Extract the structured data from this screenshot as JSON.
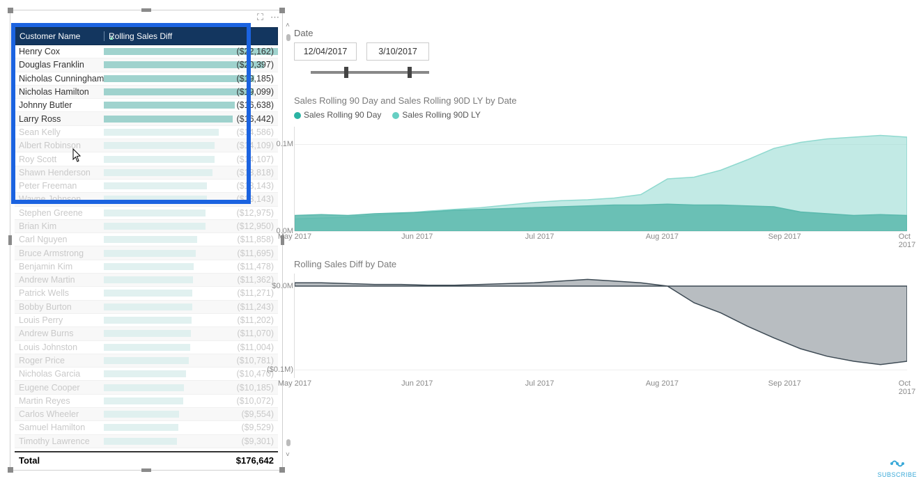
{
  "table": {
    "header_col1": "Customer Name",
    "header_col2": "Rolling Sales Diff",
    "total_label": "Total",
    "total_value": "$176,642",
    "max_bar": 22162,
    "rows": [
      {
        "name": "Henry Cox",
        "value": "($22,162)",
        "num": 22162,
        "dim": false
      },
      {
        "name": "Douglas Franklin",
        "value": "($20,397)",
        "num": 20397,
        "dim": false
      },
      {
        "name": "Nicholas Cunningham",
        "value": "($19,185)",
        "num": 19185,
        "dim": false
      },
      {
        "name": "Nicholas Hamilton",
        "value": "($19,099)",
        "num": 19099,
        "dim": false
      },
      {
        "name": "Johnny Butler",
        "value": "($16,638)",
        "num": 16638,
        "dim": false
      },
      {
        "name": "Larry Ross",
        "value": "($16,442)",
        "num": 16442,
        "dim": false
      },
      {
        "name": "Sean Kelly",
        "value": "($14,586)",
        "num": 14586,
        "dim": true
      },
      {
        "name": "Albert Robinson",
        "value": "($14,109)",
        "num": 14109,
        "dim": true
      },
      {
        "name": "Roy Scott",
        "value": "($14,107)",
        "num": 14107,
        "dim": true
      },
      {
        "name": "Shawn Henderson",
        "value": "($13,818)",
        "num": 13818,
        "dim": true
      },
      {
        "name": "Peter Freeman",
        "value": "($13,143)",
        "num": 13143,
        "dim": true
      },
      {
        "name": "Wayne Johnson",
        "value": "($13,143)",
        "num": 13143,
        "dim": true
      },
      {
        "name": "Stephen Greene",
        "value": "($12,975)",
        "num": 12975,
        "dim": true
      },
      {
        "name": "Brian Kim",
        "value": "($12,950)",
        "num": 12950,
        "dim": true
      },
      {
        "name": "Carl Nguyen",
        "value": "($11,858)",
        "num": 11858,
        "dim": true
      },
      {
        "name": "Bruce Armstrong",
        "value": "($11,695)",
        "num": 11695,
        "dim": true
      },
      {
        "name": "Benjamin Kim",
        "value": "($11,478)",
        "num": 11478,
        "dim": true
      },
      {
        "name": "Andrew Martin",
        "value": "($11,362)",
        "num": 11362,
        "dim": true
      },
      {
        "name": "Patrick Wells",
        "value": "($11,271)",
        "num": 11271,
        "dim": true
      },
      {
        "name": "Bobby Burton",
        "value": "($11,243)",
        "num": 11243,
        "dim": true
      },
      {
        "name": "Louis Perry",
        "value": "($11,202)",
        "num": 11202,
        "dim": true
      },
      {
        "name": "Andrew Burns",
        "value": "($11,070)",
        "num": 11070,
        "dim": true
      },
      {
        "name": "Louis Johnston",
        "value": "($11,004)",
        "num": 11004,
        "dim": true
      },
      {
        "name": "Roger Price",
        "value": "($10,781)",
        "num": 10781,
        "dim": true
      },
      {
        "name": "Nicholas Garcia",
        "value": "($10,470)",
        "num": 10470,
        "dim": true
      },
      {
        "name": "Eugene Cooper",
        "value": "($10,185)",
        "num": 10185,
        "dim": true
      },
      {
        "name": "Martin Reyes",
        "value": "($10,072)",
        "num": 10072,
        "dim": true
      },
      {
        "name": "Carlos Wheeler",
        "value": "($9,554)",
        "num": 9554,
        "dim": true
      },
      {
        "name": "Samuel Hamilton",
        "value": "($9,529)",
        "num": 9529,
        "dim": true
      },
      {
        "name": "Timothy Lawrence",
        "value": "($9,301)",
        "num": 9301,
        "dim": true
      }
    ]
  },
  "date_slicer": {
    "label": "Date",
    "from": "12/04/2017",
    "to": "3/10/2017",
    "knob1_pct": 28,
    "knob2_pct": 82
  },
  "chart1": {
    "title": "Sales Rolling 90 Day and Sales Rolling 90D LY by Date",
    "legend": [
      {
        "label": "Sales Rolling 90 Day",
        "color": "#2bb3a3"
      },
      {
        "label": "Sales Rolling 90D LY",
        "color": "#66cfc3"
      }
    ],
    "yticks": [
      {
        "label": "0.1M",
        "v": 0.1
      },
      {
        "label": "0.0M",
        "v": 0.0
      }
    ],
    "ylim": [
      0,
      0.12
    ],
    "xlabels": [
      "May 2017",
      "Jun 2017",
      "Jul 2017",
      "Aug 2017",
      "Sep 2017",
      "Oct 2017"
    ],
    "series_ly_color": "#8fd9cf",
    "series_cur_color": "#5ab9ad",
    "series_cur": [
      0.018,
      0.019,
      0.018,
      0.02,
      0.021,
      0.022,
      0.024,
      0.025,
      0.026,
      0.027,
      0.028,
      0.029,
      0.03,
      0.03,
      0.031,
      0.03,
      0.03,
      0.029,
      0.028,
      0.022,
      0.02,
      0.018,
      0.019,
      0.018
    ],
    "series_ly": [
      0.014,
      0.015,
      0.016,
      0.018,
      0.02,
      0.023,
      0.025,
      0.027,
      0.03,
      0.033,
      0.035,
      0.036,
      0.038,
      0.042,
      0.06,
      0.062,
      0.07,
      0.082,
      0.095,
      0.102,
      0.106,
      0.108,
      0.11,
      0.108
    ]
  },
  "chart2": {
    "title": "Rolling Sales Diff by Date",
    "yticks": [
      {
        "label": "$0.0M",
        "v": 0.0
      },
      {
        "label": "($0.1M)",
        "v": -0.1
      }
    ],
    "ylim": [
      -0.11,
      0.015
    ],
    "xlabels": [
      "May 2017",
      "Jun 2017",
      "Jul 2017",
      "Aug 2017",
      "Sep 2017",
      "Oct 2017"
    ],
    "line_color": "#3d4a54",
    "fill_color": "#9aa1a7",
    "values": [
      0.004,
      0.004,
      0.003,
      0.002,
      0.002,
      0.001,
      0.001,
      0.002,
      0.003,
      0.004,
      0.006,
      0.008,
      0.006,
      0.004,
      0.0,
      -0.02,
      -0.032,
      -0.048,
      -0.062,
      -0.075,
      -0.084,
      -0.09,
      -0.094,
      -0.09
    ]
  },
  "subscribe_label": "SUBSCRIBE"
}
